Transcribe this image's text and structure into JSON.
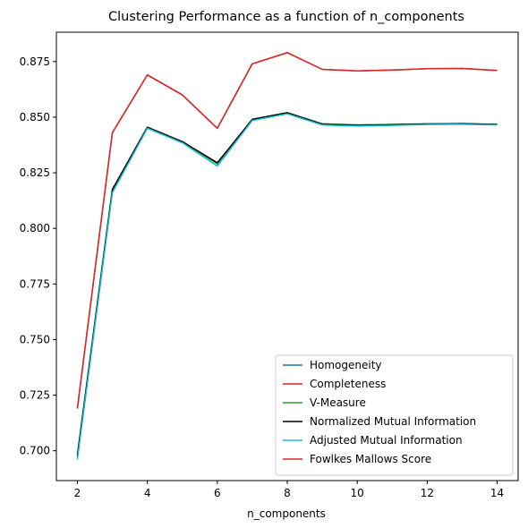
{
  "chart_data": {
    "type": "line",
    "title": "Clustering Performance as a function of n_components",
    "xlabel": "n_components",
    "ylabel": "",
    "x": [
      2,
      3,
      4,
      5,
      6,
      7,
      8,
      9,
      10,
      11,
      12,
      13,
      14
    ],
    "xticks": [
      2,
      4,
      6,
      8,
      10,
      12,
      14
    ],
    "xlim": [
      1.4,
      14.6
    ],
    "yticks": [
      0.7,
      0.725,
      0.75,
      0.775,
      0.8,
      0.825,
      0.85,
      0.875
    ],
    "ylim": [
      0.6866,
      0.8882
    ],
    "grid": false,
    "legend_position": "lower right",
    "series": [
      {
        "name": "Homogeneity",
        "color": "#1f77b4",
        "values": [
          0.697,
          0.817,
          0.845,
          0.839,
          0.829,
          0.849,
          0.852,
          0.847,
          0.8465,
          0.8467,
          0.847,
          0.847,
          0.8468
        ]
      },
      {
        "name": "Completeness",
        "color": "#d62728",
        "values": [
          0.719,
          0.843,
          0.869,
          0.86,
          0.845,
          0.874,
          0.879,
          0.8715,
          0.8708,
          0.8712,
          0.8718,
          0.8719,
          0.871
        ]
      },
      {
        "name": "V-Measure",
        "color": "#2ca02c",
        "values": [
          0.697,
          0.817,
          0.845,
          0.839,
          0.829,
          0.849,
          0.852,
          0.847,
          0.8465,
          0.8467,
          0.847,
          0.847,
          0.8468
        ]
      },
      {
        "name": "Normalized Mutual Information",
        "color": "#000000",
        "values": [
          0.698,
          0.8175,
          0.8455,
          0.839,
          0.8295,
          0.849,
          0.852,
          0.8468,
          0.8463,
          0.8466,
          0.8469,
          0.8471,
          0.8467
        ]
      },
      {
        "name": "Adjusted Mutual Information",
        "color": "#17becf",
        "values": [
          0.696,
          0.816,
          0.845,
          0.8385,
          0.828,
          0.8485,
          0.8515,
          0.8465,
          0.846,
          0.8463,
          0.8467,
          0.8468,
          0.8465
        ]
      },
      {
        "name": "Fowlkes Mallows Score",
        "color": "#d62728",
        "values": [
          0.719,
          0.843,
          0.869,
          0.86,
          0.845,
          0.874,
          0.879,
          0.8715,
          0.8708,
          0.8712,
          0.8718,
          0.8719,
          0.871
        ]
      }
    ]
  }
}
